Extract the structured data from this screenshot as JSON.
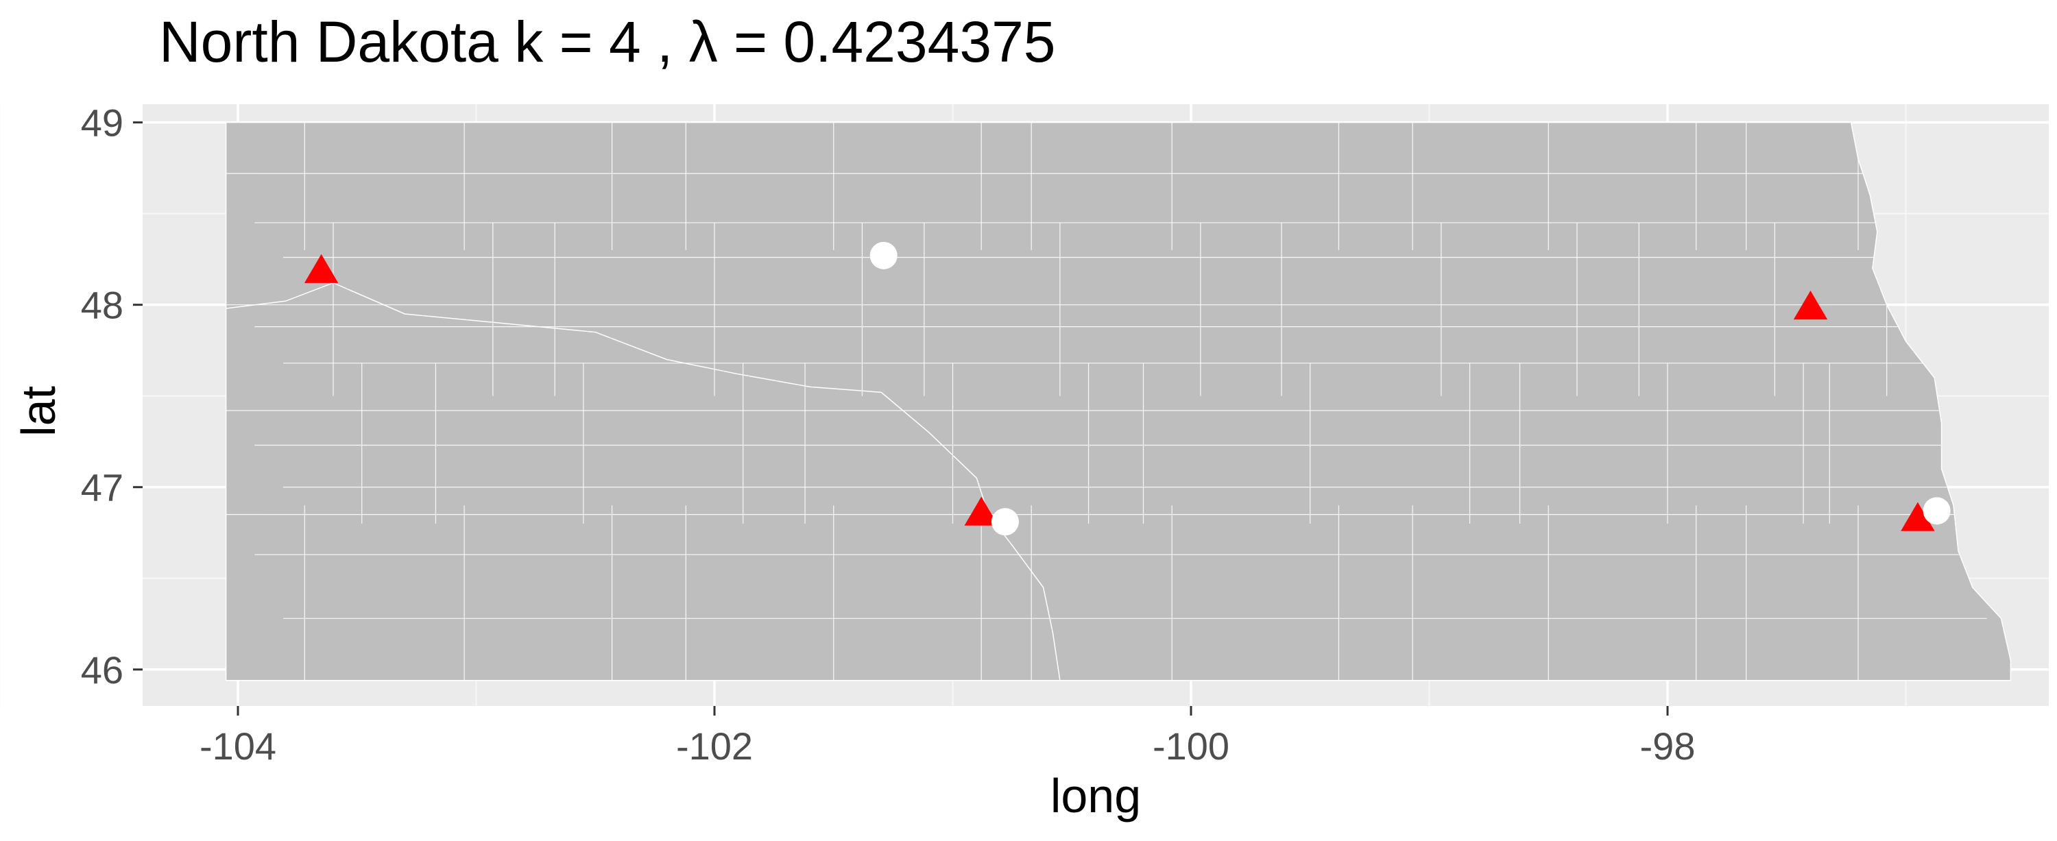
{
  "chart_data": {
    "type": "scatter",
    "title": "North Dakota  k =  4 ,  λ  =  0.4234375",
    "xlabel": "long",
    "ylabel": "lat",
    "xlim": [
      -104.4,
      -96.4
    ],
    "ylim": [
      45.8,
      49.1
    ],
    "x_ticks": [
      -104,
      -102,
      -100,
      -98
    ],
    "y_ticks": [
      46,
      47,
      48,
      49
    ],
    "x_tick_labels": [
      "-104",
      "-102",
      "-100",
      "-98"
    ],
    "y_tick_labels": [
      "46",
      "47",
      "48",
      "49"
    ],
    "grid": true,
    "colors": {
      "panel_background": "#ebebeb",
      "state_fill": "#bebebe",
      "county_borders": "#ffffff",
      "triangle": "#ff0000",
      "circle": "#ffffff"
    },
    "series": [
      {
        "marker": "triangle",
        "color": "#ff0000",
        "points": [
          {
            "x": -103.65,
            "y": 48.18
          },
          {
            "x": -100.88,
            "y": 46.85
          },
          {
            "x": -97.4,
            "y": 47.98
          },
          {
            "x": -96.95,
            "y": 46.82
          }
        ]
      },
      {
        "marker": "circle",
        "color": "#ffffff",
        "points": [
          {
            "x": -101.29,
            "y": 48.27
          },
          {
            "x": -100.78,
            "y": 46.81
          },
          {
            "x": -96.87,
            "y": 46.87
          }
        ]
      }
    ]
  }
}
